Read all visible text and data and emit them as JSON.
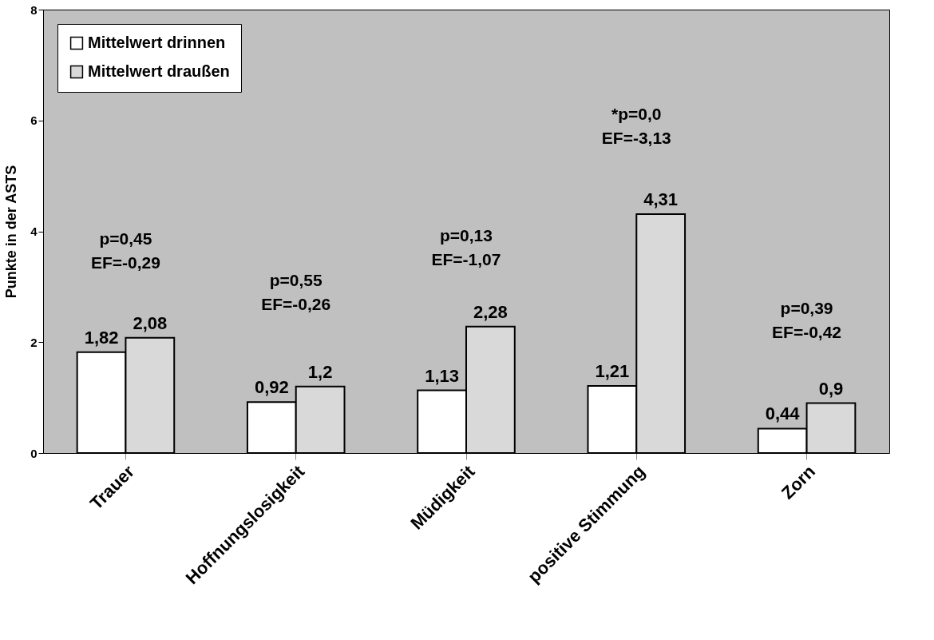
{
  "chart_data": {
    "type": "bar",
    "ylabel": "Punkte in der ASTS",
    "categories": [
      "Trauer",
      "Hoffnungslosigkeit",
      "Müdigkeit",
      "positive Stimmung",
      "Zorn"
    ],
    "series": [
      {
        "name": "Mittelwert drinnen",
        "color": "#ffffff",
        "values": [
          1.82,
          0.92,
          1.13,
          1.21,
          0.44
        ],
        "value_labels": [
          "1,82",
          "0,92",
          "1,13",
          "1,21",
          "0,44"
        ]
      },
      {
        "name": "Mittelwert draußen",
        "color": "#d9d9d9",
        "values": [
          2.08,
          1.2,
          2.28,
          4.31,
          0.9
        ],
        "value_labels": [
          "2,08",
          "1,2",
          "2,28",
          "4,31",
          "0,9"
        ]
      }
    ],
    "ylim": [
      0,
      8
    ],
    "yticks": [
      0,
      2,
      4,
      6,
      8
    ],
    "grid": false,
    "legend": "top left",
    "annotations": [
      "p=0,45\nEF=-0,29",
      "p=0,55\nEF=-0,26",
      "p=0,13\nEF=-1,07",
      "*p=0,0\nEF=-3,13",
      "p=0,39\nEF=-0,42"
    ]
  }
}
